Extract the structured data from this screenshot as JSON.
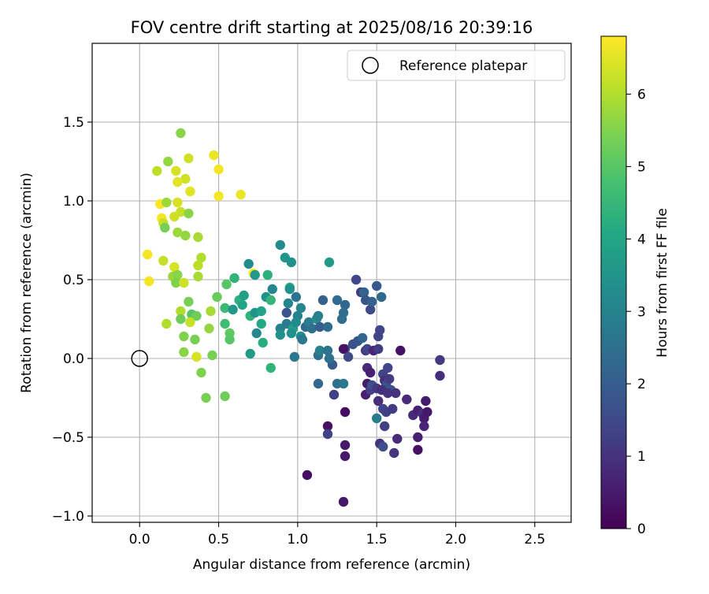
{
  "chart_data": {
    "type": "scatter",
    "title": "FOV centre drift starting at 2025/08/16 20:39:16",
    "xlabel": "Angular distance from reference (arcmin)",
    "ylabel": "Rotation from reference (arcmin)",
    "xlim": [
      -0.3,
      2.73
    ],
    "ylim": [
      -1.04,
      2.0
    ],
    "x_ticks": [
      "0.0",
      "0.5",
      "1.0",
      "1.5",
      "2.0",
      "2.5"
    ],
    "y_ticks": [
      "−1.0",
      "−0.5",
      "0.0",
      "0.5",
      "1.0",
      "1.5"
    ],
    "grid": true,
    "legend": {
      "placement": "top-right",
      "entries": [
        "Reference platepar"
      ]
    },
    "reference_point": {
      "x": 0.0,
      "y": 0.0,
      "label": "Reference platepar"
    },
    "colorbar": {
      "label": "Hours from first FF file",
      "colormap": "viridis",
      "range": [
        0,
        6.8
      ],
      "ticks": [
        "0",
        "1",
        "2",
        "3",
        "4",
        "5",
        "6"
      ]
    },
    "points": [
      {
        "x": 0.05,
        "y": 0.66,
        "h": 6.7
      },
      {
        "x": 0.06,
        "y": 0.49,
        "h": 6.7
      },
      {
        "x": 0.13,
        "y": 0.98,
        "h": 6.8
      },
      {
        "x": 0.14,
        "y": 0.89,
        "h": 6.7
      },
      {
        "x": 0.11,
        "y": 1.19,
        "h": 6.1
      },
      {
        "x": 0.18,
        "y": 1.25,
        "h": 5.7
      },
      {
        "x": 0.23,
        "y": 1.19,
        "h": 6.4
      },
      {
        "x": 0.26,
        "y": 1.43,
        "h": 5.6
      },
      {
        "x": 0.31,
        "y": 1.27,
        "h": 6.3
      },
      {
        "x": 0.47,
        "y": 1.29,
        "h": 6.6
      },
      {
        "x": 0.5,
        "y": 1.2,
        "h": 6.7
      },
      {
        "x": 0.5,
        "y": 1.03,
        "h": 6.7
      },
      {
        "x": 0.64,
        "y": 1.04,
        "h": 6.6
      },
      {
        "x": 0.29,
        "y": 1.14,
        "h": 6.3
      },
      {
        "x": 0.24,
        "y": 1.12,
        "h": 6.5
      },
      {
        "x": 0.32,
        "y": 1.06,
        "h": 6.5
      },
      {
        "x": 0.17,
        "y": 0.99,
        "h": 5.8
      },
      {
        "x": 0.24,
        "y": 0.99,
        "h": 6.4
      },
      {
        "x": 0.26,
        "y": 0.93,
        "h": 6.2
      },
      {
        "x": 0.31,
        "y": 0.92,
        "h": 5.6
      },
      {
        "x": 0.22,
        "y": 0.9,
        "h": 6.3
      },
      {
        "x": 0.15,
        "y": 0.86,
        "h": 6.2
      },
      {
        "x": 0.16,
        "y": 0.83,
        "h": 5.4
      },
      {
        "x": 0.24,
        "y": 0.8,
        "h": 5.8
      },
      {
        "x": 0.29,
        "y": 0.78,
        "h": 5.7
      },
      {
        "x": 0.37,
        "y": 0.77,
        "h": 5.9
      },
      {
        "x": 0.39,
        "y": 0.64,
        "h": 6.0
      },
      {
        "x": 0.15,
        "y": 0.62,
        "h": 6.2
      },
      {
        "x": 0.22,
        "y": 0.58,
        "h": 6.4
      },
      {
        "x": 0.37,
        "y": 0.59,
        "h": 6.1
      },
      {
        "x": 0.21,
        "y": 0.52,
        "h": 5.8
      },
      {
        "x": 0.24,
        "y": 0.53,
        "h": 5.6
      },
      {
        "x": 0.23,
        "y": 0.48,
        "h": 5.5
      },
      {
        "x": 0.28,
        "y": 0.48,
        "h": 6.3
      },
      {
        "x": 0.37,
        "y": 0.52,
        "h": 5.9
      },
      {
        "x": 0.72,
        "y": 0.54,
        "h": 6.8
      },
      {
        "x": 0.31,
        "y": 0.36,
        "h": 5.4
      },
      {
        "x": 0.33,
        "y": 0.28,
        "h": 5.0
      },
      {
        "x": 0.26,
        "y": 0.3,
        "h": 6.0
      },
      {
        "x": 0.36,
        "y": 0.27,
        "h": 5.3
      },
      {
        "x": 0.26,
        "y": 0.25,
        "h": 5.3
      },
      {
        "x": 0.17,
        "y": 0.22,
        "h": 6.0
      },
      {
        "x": 0.32,
        "y": 0.23,
        "h": 6.2
      },
      {
        "x": 0.45,
        "y": 0.3,
        "h": 5.9
      },
      {
        "x": 0.44,
        "y": 0.19,
        "h": 5.7
      },
      {
        "x": 0.35,
        "y": 0.12,
        "h": 5.4
      },
      {
        "x": 0.28,
        "y": 0.14,
        "h": 5.5
      },
      {
        "x": 0.36,
        "y": 0.01,
        "h": 6.4
      },
      {
        "x": 0.28,
        "y": 0.04,
        "h": 5.6
      },
      {
        "x": 0.46,
        "y": 0.02,
        "h": 5.4
      },
      {
        "x": 0.39,
        "y": -0.09,
        "h": 5.5
      },
      {
        "x": 0.42,
        "y": -0.25,
        "h": 5.4
      },
      {
        "x": 0.54,
        "y": -0.24,
        "h": 5.3
      },
      {
        "x": 0.49,
        "y": 0.39,
        "h": 5.2
      },
      {
        "x": 0.54,
        "y": 0.32,
        "h": 4.6
      },
      {
        "x": 0.55,
        "y": 0.47,
        "h": 5.0
      },
      {
        "x": 0.6,
        "y": 0.51,
        "h": 4.4
      },
      {
        "x": 0.54,
        "y": 0.22,
        "h": 4.7
      },
      {
        "x": 0.57,
        "y": 0.16,
        "h": 5.1
      },
      {
        "x": 0.57,
        "y": 0.12,
        "h": 5.0
      },
      {
        "x": 0.59,
        "y": 0.31,
        "h": 3.6
      },
      {
        "x": 0.63,
        "y": 0.37,
        "h": 4.3
      },
      {
        "x": 0.66,
        "y": 0.4,
        "h": 3.8
      },
      {
        "x": 0.69,
        "y": 0.6,
        "h": 3.3
      },
      {
        "x": 0.73,
        "y": 0.53,
        "h": 3.6
      },
      {
        "x": 0.65,
        "y": 0.34,
        "h": 4.0
      },
      {
        "x": 0.7,
        "y": 0.27,
        "h": 4.4
      },
      {
        "x": 0.73,
        "y": 0.29,
        "h": 3.5
      },
      {
        "x": 0.74,
        "y": 0.16,
        "h": 3.1
      },
      {
        "x": 0.7,
        "y": 0.03,
        "h": 3.7
      },
      {
        "x": 0.78,
        "y": 0.1,
        "h": 4.2
      },
      {
        "x": 0.77,
        "y": 0.22,
        "h": 4.1
      },
      {
        "x": 0.8,
        "y": 0.39,
        "h": 3.4
      },
      {
        "x": 0.84,
        "y": 0.44,
        "h": 3.1
      },
      {
        "x": 0.81,
        "y": 0.53,
        "h": 4.3
      },
      {
        "x": 0.77,
        "y": 0.3,
        "h": 3.9
      },
      {
        "x": 0.83,
        "y": 0.37,
        "h": 4.5
      },
      {
        "x": 0.83,
        "y": -0.06,
        "h": 4.4
      },
      {
        "x": 0.89,
        "y": 0.72,
        "h": 3.2
      },
      {
        "x": 0.92,
        "y": 0.64,
        "h": 3.5
      },
      {
        "x": 0.96,
        "y": 0.61,
        "h": 3.4
      },
      {
        "x": 0.95,
        "y": 0.45,
        "h": 4.1
      },
      {
        "x": 0.95,
        "y": 0.44,
        "h": 3.4
      },
      {
        "x": 0.94,
        "y": 0.35,
        "h": 3.1
      },
      {
        "x": 0.89,
        "y": 0.19,
        "h": 3.0
      },
      {
        "x": 0.89,
        "y": 0.15,
        "h": 3.4
      },
      {
        "x": 0.93,
        "y": 0.29,
        "h": 1.8
      },
      {
        "x": 0.93,
        "y": 0.22,
        "h": 2.8
      },
      {
        "x": 0.97,
        "y": 0.19,
        "h": 3.8
      },
      {
        "x": 0.96,
        "y": 0.16,
        "h": 3.4
      },
      {
        "x": 0.99,
        "y": 0.39,
        "h": 2.6
      },
      {
        "x": 1.0,
        "y": 0.27,
        "h": 3.0
      },
      {
        "x": 1.02,
        "y": 0.32,
        "h": 3.1
      },
      {
        "x": 1.02,
        "y": 0.14,
        "h": 3.3
      },
      {
        "x": 1.03,
        "y": 0.12,
        "h": 2.7
      },
      {
        "x": 0.99,
        "y": 0.23,
        "h": 3.2
      },
      {
        "x": 1.05,
        "y": 0.2,
        "h": 2.3
      },
      {
        "x": 1.07,
        "y": 0.23,
        "h": 2.8
      },
      {
        "x": 1.09,
        "y": 0.19,
        "h": 2.5
      },
      {
        "x": 1.12,
        "y": 0.25,
        "h": 3.2
      },
      {
        "x": 1.14,
        "y": 0.2,
        "h": 2.0
      },
      {
        "x": 1.13,
        "y": 0.27,
        "h": 2.9
      },
      {
        "x": 1.16,
        "y": 0.37,
        "h": 2.1
      },
      {
        "x": 1.19,
        "y": 0.2,
        "h": 2.4
      },
      {
        "x": 1.2,
        "y": 0.61,
        "h": 3.7
      },
      {
        "x": 1.25,
        "y": 0.37,
        "h": 2.4
      },
      {
        "x": 1.29,
        "y": 0.29,
        "h": 2.5
      },
      {
        "x": 1.3,
        "y": 0.34,
        "h": 2.3
      },
      {
        "x": 1.28,
        "y": 0.25,
        "h": 2.4
      },
      {
        "x": 1.37,
        "y": 0.5,
        "h": 1.4
      },
      {
        "x": 1.4,
        "y": 0.42,
        "h": 1.2
      },
      {
        "x": 1.42,
        "y": 0.42,
        "h": 2.2
      },
      {
        "x": 1.43,
        "y": 0.37,
        "h": 1.8
      },
      {
        "x": 1.46,
        "y": 0.31,
        "h": 1.5
      },
      {
        "x": 1.47,
        "y": 0.36,
        "h": 2.1
      },
      {
        "x": 1.5,
        "y": 0.46,
        "h": 1.9
      },
      {
        "x": 1.53,
        "y": 0.39,
        "h": 2.3
      },
      {
        "x": 0.98,
        "y": 0.01,
        "h": 2.7
      },
      {
        "x": 1.13,
        "y": 0.02,
        "h": 2.5
      },
      {
        "x": 1.14,
        "y": 0.05,
        "h": 2.9
      },
      {
        "x": 1.19,
        "y": 0.05,
        "h": 2.6
      },
      {
        "x": 1.22,
        "y": -0.04,
        "h": 1.9
      },
      {
        "x": 1.2,
        "y": 0.0,
        "h": 2.5
      },
      {
        "x": 1.3,
        "y": 0.06,
        "h": 1.8
      },
      {
        "x": 1.29,
        "y": 0.06,
        "h": 0.3
      },
      {
        "x": 1.32,
        "y": 0.01,
        "h": 1.5
      },
      {
        "x": 1.35,
        "y": 0.09,
        "h": 1.7
      },
      {
        "x": 1.38,
        "y": 0.11,
        "h": 1.8
      },
      {
        "x": 1.41,
        "y": 0.13,
        "h": 2.2
      },
      {
        "x": 1.43,
        "y": 0.05,
        "h": 1.1
      },
      {
        "x": 1.44,
        "y": 0.06,
        "h": 1.4
      },
      {
        "x": 1.48,
        "y": 0.05,
        "h": 0.7
      },
      {
        "x": 1.51,
        "y": 0.14,
        "h": 1.4
      },
      {
        "x": 1.52,
        "y": 0.18,
        "h": 1.4
      },
      {
        "x": 1.51,
        "y": 0.06,
        "h": 1.2
      },
      {
        "x": 1.44,
        "y": -0.06,
        "h": 0.8
      },
      {
        "x": 1.46,
        "y": -0.09,
        "h": 0.6
      },
      {
        "x": 1.44,
        "y": -0.16,
        "h": 0.5
      },
      {
        "x": 1.43,
        "y": -0.23,
        "h": 0.6
      },
      {
        "x": 1.46,
        "y": -0.2,
        "h": 1.3
      },
      {
        "x": 1.47,
        "y": -0.17,
        "h": 1.6
      },
      {
        "x": 1.5,
        "y": -0.19,
        "h": 1.1
      },
      {
        "x": 1.54,
        "y": -0.1,
        "h": 1.4
      },
      {
        "x": 1.55,
        "y": -0.14,
        "h": 0.9
      },
      {
        "x": 1.57,
        "y": -0.06,
        "h": 1.4
      },
      {
        "x": 1.56,
        "y": -0.17,
        "h": 1.7
      },
      {
        "x": 1.58,
        "y": -0.13,
        "h": 1.2
      },
      {
        "x": 1.59,
        "y": -0.2,
        "h": 1.8
      },
      {
        "x": 1.53,
        "y": -0.2,
        "h": 0.9
      },
      {
        "x": 1.57,
        "y": -0.22,
        "h": 1.0
      },
      {
        "x": 1.62,
        "y": -0.22,
        "h": 1.0
      },
      {
        "x": 1.51,
        "y": -0.27,
        "h": 0.9
      },
      {
        "x": 1.54,
        "y": -0.32,
        "h": 1.4
      },
      {
        "x": 1.56,
        "y": -0.34,
        "h": 1.3
      },
      {
        "x": 1.6,
        "y": -0.32,
        "h": 1.2
      },
      {
        "x": 1.5,
        "y": -0.38,
        "h": 2.8
      },
      {
        "x": 1.55,
        "y": -0.43,
        "h": 1.3
      },
      {
        "x": 1.63,
        "y": -0.51,
        "h": 0.8
      },
      {
        "x": 1.52,
        "y": -0.54,
        "h": 1.0
      },
      {
        "x": 1.54,
        "y": -0.56,
        "h": 1.6
      },
      {
        "x": 1.61,
        "y": -0.6,
        "h": 1.0
      },
      {
        "x": 1.65,
        "y": 0.05,
        "h": 0.3
      },
      {
        "x": 1.69,
        "y": -0.26,
        "h": 0.8
      },
      {
        "x": 1.73,
        "y": -0.36,
        "h": 0.8
      },
      {
        "x": 1.76,
        "y": -0.33,
        "h": 0.6
      },
      {
        "x": 1.76,
        "y": -0.5,
        "h": 0.6
      },
      {
        "x": 1.79,
        "y": -0.35,
        "h": 0.9
      },
      {
        "x": 1.8,
        "y": -0.38,
        "h": 0.5
      },
      {
        "x": 1.8,
        "y": -0.43,
        "h": 0.7
      },
      {
        "x": 1.81,
        "y": -0.27,
        "h": 0.5
      },
      {
        "x": 1.82,
        "y": -0.34,
        "h": 0.4
      },
      {
        "x": 1.76,
        "y": -0.58,
        "h": 0.3
      },
      {
        "x": 1.9,
        "y": -0.01,
        "h": 1.1
      },
      {
        "x": 1.9,
        "y": -0.11,
        "h": 0.9
      },
      {
        "x": 1.23,
        "y": -0.23,
        "h": 1.3
      },
      {
        "x": 1.25,
        "y": -0.16,
        "h": 2.5
      },
      {
        "x": 1.13,
        "y": -0.16,
        "h": 2.3
      },
      {
        "x": 1.29,
        "y": -0.16,
        "h": 2.7
      },
      {
        "x": 1.19,
        "y": -0.43,
        "h": 0.3
      },
      {
        "x": 1.19,
        "y": -0.48,
        "h": 1.3
      },
      {
        "x": 1.3,
        "y": -0.34,
        "h": 0.2
      },
      {
        "x": 1.3,
        "y": -0.55,
        "h": 0.5
      },
      {
        "x": 1.3,
        "y": -0.62,
        "h": 0.5
      },
      {
        "x": 1.06,
        "y": -0.74,
        "h": 0.2
      },
      {
        "x": 1.29,
        "y": -0.91,
        "h": 0.4
      }
    ]
  }
}
